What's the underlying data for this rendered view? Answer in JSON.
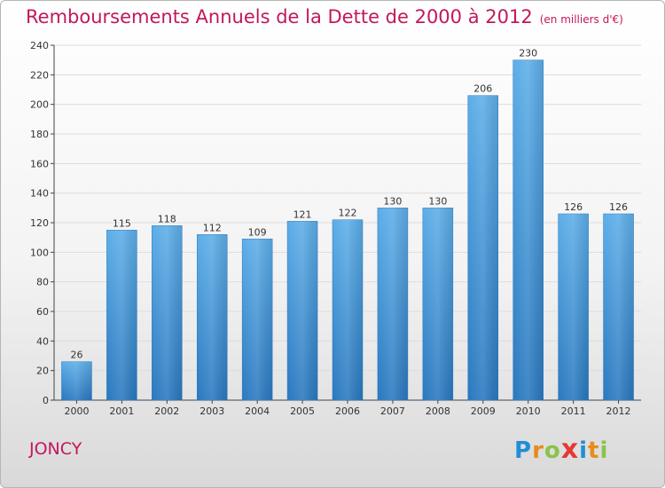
{
  "header": {
    "title": "Remboursements Annuels de la Dette de 2000 à 2012",
    "subtitle": "(en milliers d'€)"
  },
  "footer": {
    "commune": "JONCY",
    "logo_letters": [
      "P",
      "r",
      "o",
      "x",
      "i",
      "t",
      "i"
    ],
    "logo_colors": [
      "#1f8fd6",
      "#e98b1c",
      "#8bc34a",
      "#e53935",
      "#1f8fd6",
      "#e98b1c",
      "#8bc34a"
    ]
  },
  "colors": {
    "accent": "#c2185b",
    "bar_top": "#5daee8",
    "bar_bottom": "#2a78bf"
  },
  "chart_data": {
    "type": "bar",
    "title": "Remboursements Annuels de la Dette de 2000 à 2012",
    "xlabel": "",
    "ylabel": "",
    "categories": [
      "2000",
      "2001",
      "2002",
      "2003",
      "2004",
      "2005",
      "2006",
      "2007",
      "2008",
      "2009",
      "2010",
      "2011",
      "2012"
    ],
    "values": [
      26,
      115,
      118,
      112,
      109,
      121,
      122,
      130,
      130,
      206,
      230,
      126,
      126
    ],
    "ylim": [
      0,
      240
    ],
    "yticks": [
      0,
      20,
      40,
      60,
      80,
      100,
      120,
      140,
      160,
      180,
      200,
      220,
      240
    ],
    "grid": true
  }
}
